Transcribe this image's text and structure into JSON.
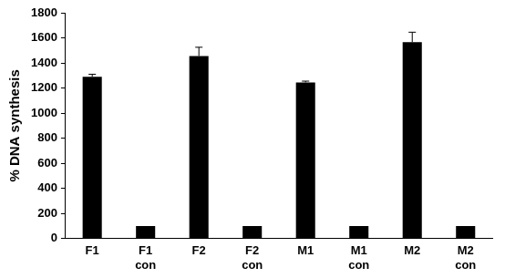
{
  "chart_data": {
    "type": "bar",
    "y_label": "% DNA synthesis",
    "categories": [
      "F1",
      "F1 con",
      "F2",
      "F2 con",
      "M1",
      "M1 con",
      "M2",
      "M2 con"
    ],
    "values": [
      1290,
      100,
      1455,
      100,
      1245,
      100,
      1565,
      100
    ],
    "errors": [
      20,
      0,
      70,
      0,
      10,
      0,
      80,
      0
    ],
    "color": "#000000",
    "ylim": [
      0,
      1800
    ],
    "yticks": [
      0,
      200,
      400,
      600,
      800,
      1000,
      1200,
      1400,
      1600,
      1800
    ],
    "grid": false
  }
}
